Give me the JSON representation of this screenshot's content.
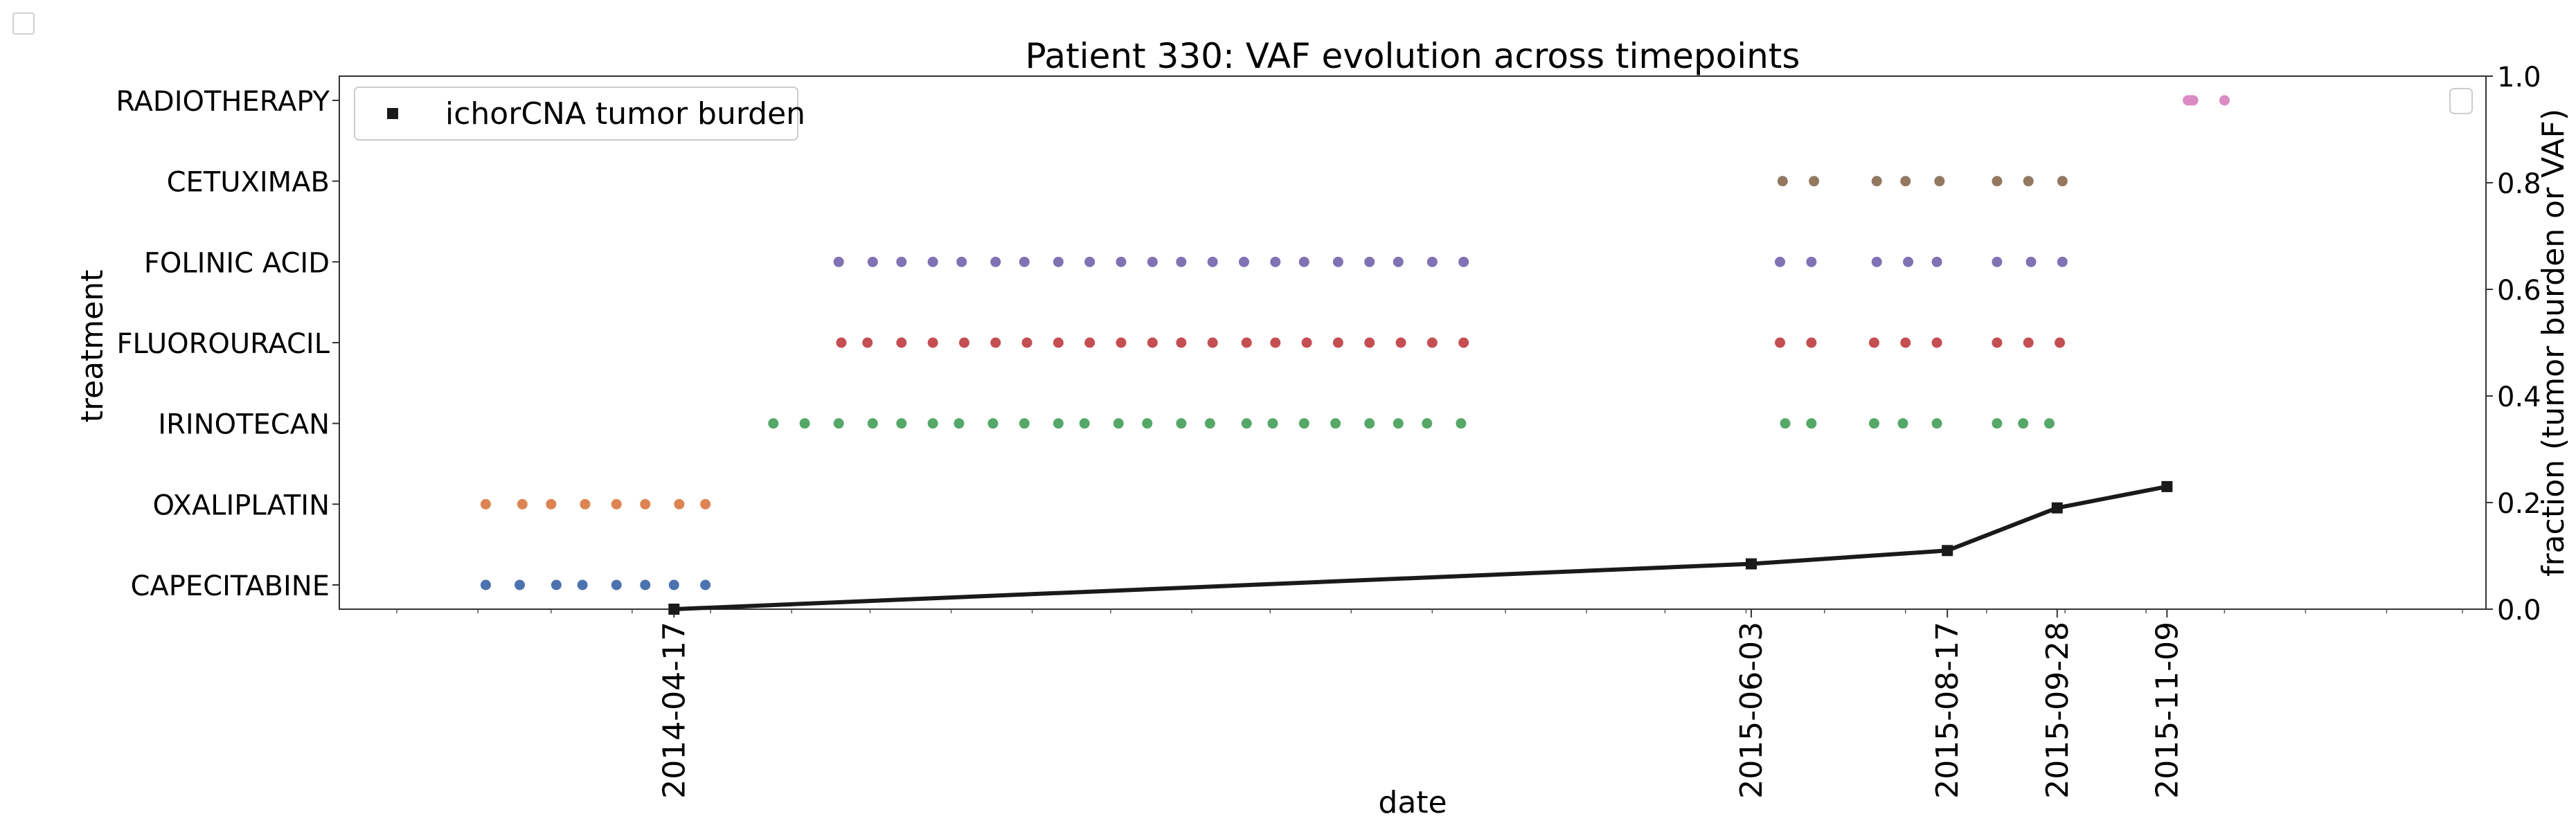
{
  "chart_data": {
    "type": "scatter",
    "title": "Patient 330: VAF evolution across timepoints",
    "xlabel": "date",
    "ylabel_left": "treatment",
    "ylabel_right": "fraction (tumor burden or VAF)",
    "xlim": [
      "2013-12-10",
      "2016-03-10"
    ],
    "ylim_right": [
      0,
      1
    ],
    "yticks_right": [
      "0.0",
      "0.2",
      "0.4",
      "0.6",
      "0.8",
      "1.0"
    ],
    "xticks": [
      "2014-04-17",
      "2015-06-03",
      "2015-08-17",
      "2015-09-28",
      "2015-11-09"
    ],
    "categories": [
      "CAPECITABINE",
      "OXALIPLATIN",
      "IRINOTECAN",
      "FLUOROURACIL",
      "FOLINIC ACID",
      "CETUXIMAB",
      "RADIOTHERAPY"
    ],
    "legend_primary": {
      "placement": "upper left",
      "entries": [
        "ichorCNA tumor burden"
      ]
    },
    "legend_secondary": {
      "placement": "upper right",
      "entries": []
    },
    "treatment_series": [
      {
        "name": "CAPECITABINE",
        "color": "#4c72b0",
        "dates": [
          "2014-02-04",
          "2014-02-17",
          "2014-03-03",
          "2014-03-13",
          "2014-03-26",
          "2014-04-06",
          "2014-04-17",
          "2014-04-29"
        ]
      },
      {
        "name": "OXALIPLATIN",
        "color": "#dd8452",
        "dates": [
          "2014-02-04",
          "2014-02-18",
          "2014-03-01",
          "2014-03-14",
          "2014-03-26",
          "2014-04-06",
          "2014-04-19",
          "2014-04-29"
        ]
      },
      {
        "name": "IRINOTECAN",
        "color": "#55a868",
        "dates": [
          "2014-05-25",
          "2014-06-06",
          "2014-06-19",
          "2014-07-02",
          "2014-07-13",
          "2014-07-25",
          "2014-08-04",
          "2014-08-17",
          "2014-08-29",
          "2014-09-11",
          "2014-09-21",
          "2014-10-04",
          "2014-10-15",
          "2014-10-28",
          "2014-11-08",
          "2014-11-22",
          "2014-12-02",
          "2014-12-14",
          "2014-12-26",
          "2015-01-08",
          "2015-01-19",
          "2015-01-30",
          "2015-02-12",
          "2015-06-16",
          "2015-06-26",
          "2015-07-20",
          "2015-07-31",
          "2015-08-13",
          "2015-09-05",
          "2015-09-15",
          "2015-09-25"
        ]
      },
      {
        "name": "FLUOROURACIL",
        "color": "#c44e52",
        "dates": [
          "2014-06-20",
          "2014-06-30",
          "2014-07-13",
          "2014-07-25",
          "2014-08-06",
          "2014-08-18",
          "2014-08-30",
          "2014-09-11",
          "2014-09-23",
          "2014-10-05",
          "2014-10-17",
          "2014-10-28",
          "2014-11-09",
          "2014-11-22",
          "2014-12-03",
          "2014-12-15",
          "2014-12-27",
          "2015-01-08",
          "2015-01-20",
          "2015-02-01",
          "2015-02-13",
          "2015-06-14",
          "2015-06-26",
          "2015-07-20",
          "2015-08-01",
          "2015-08-13",
          "2015-09-05",
          "2015-09-17",
          "2015-09-29"
        ]
      },
      {
        "name": "FOLINIC ACID",
        "color": "#8172b3",
        "dates": [
          "2014-06-19",
          "2014-07-02",
          "2014-07-13",
          "2014-07-25",
          "2014-08-05",
          "2014-08-18",
          "2014-08-29",
          "2014-09-11",
          "2014-09-23",
          "2014-10-05",
          "2014-10-17",
          "2014-10-28",
          "2014-11-09",
          "2014-11-21",
          "2014-12-03",
          "2014-12-14",
          "2014-12-27",
          "2015-01-08",
          "2015-01-19",
          "2015-02-01",
          "2015-02-13",
          "2015-06-14",
          "2015-06-26",
          "2015-07-21",
          "2015-08-02",
          "2015-08-13",
          "2015-09-05",
          "2015-09-18",
          "2015-09-30"
        ]
      },
      {
        "name": "CETUXIMAB",
        "color": "#937860",
        "dates": [
          "2015-06-15",
          "2015-06-27",
          "2015-07-21",
          "2015-08-01",
          "2015-08-14",
          "2015-09-05",
          "2015-09-17",
          "2015-09-30"
        ]
      },
      {
        "name": "RADIOTHERAPY",
        "color": "#da8bc3",
        "dates": [
          "2015-11-17",
          "2015-11-18",
          "2015-11-19",
          "2015-12-01"
        ]
      }
    ],
    "tumor_burden": {
      "name": "ichorCNA tumor burden",
      "color": "#1a1a1a",
      "x": [
        "2014-04-17",
        "2015-06-03",
        "2015-08-17",
        "2015-09-28",
        "2015-11-09"
      ],
      "y": [
        0.0,
        0.085,
        0.11,
        0.19,
        0.23
      ]
    }
  }
}
